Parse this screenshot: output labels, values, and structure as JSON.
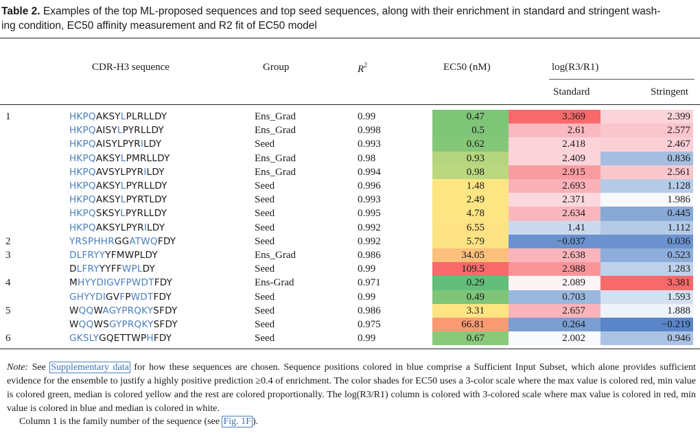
{
  "caption": {
    "label": "Table 2.",
    "text_line1": " Examples of the top ML-proposed sequences and top seed sequences, along with their enrichment in standard and stringent wash-",
    "text_line2": "ing condition, EC50 affinity measurement and R2 fit of EC50 model"
  },
  "headers": {
    "seq": "CDR-H3 sequence",
    "group": "Group",
    "r2_base": "R",
    "r2_sup": "2",
    "ec50": "EC50 (nM)",
    "log": "log(R3/R1)",
    "standard": "Standard",
    "stringent": "Stringent"
  },
  "colors": {
    "sis_blue": "#4a7fbf"
  },
  "rows": [
    {
      "family": "1",
      "seq": [
        [
          "HKPQ",
          "b"
        ],
        [
          "AKSY",
          "k"
        ],
        [
          "L",
          "b"
        ],
        [
          "PLRLLDY",
          "k"
        ]
      ],
      "group": "Ens_Grad",
      "r2": "0.99",
      "ec50": "0.47",
      "ec50_bg": "#7ec577",
      "std": "3.369",
      "std_bg": "#f8696b",
      "str": "2.399",
      "str_bg": "#fbd4da"
    },
    {
      "family": "",
      "seq": [
        [
          "HKPQ",
          "b"
        ],
        [
          "AISY",
          "k"
        ],
        [
          "L",
          "b"
        ],
        [
          "PYRLLDY",
          "k"
        ]
      ],
      "group": "Ens_Grad",
      "r2": "0.998",
      "ec50": "0.5",
      "ec50_bg": "#7ec577",
      "std": "2.61",
      "std_bg": "#fab8c0",
      "str": "2.577",
      "str_bg": "#fac5cc"
    },
    {
      "family": "",
      "seq": [
        [
          "HKPQ",
          "b"
        ],
        [
          "AISYLPYR",
          "k"
        ],
        [
          "I",
          "b"
        ],
        [
          "LDY",
          "k"
        ]
      ],
      "group": "Seed",
      "r2": "0.993",
      "ec50": "0.62",
      "ec50_bg": "#84c779",
      "std": "2.418",
      "std_bg": "#fbd3d9",
      "str": "2.467",
      "str_bg": "#fbcfd5"
    },
    {
      "family": "",
      "seq": [
        [
          "HKPQ",
          "b"
        ],
        [
          "AKSY",
          "k"
        ],
        [
          "L",
          "b"
        ],
        [
          "PMRLLDY",
          "k"
        ]
      ],
      "group": "Ens_Grad",
      "r2": "0.98",
      "ec50": "0.93",
      "ec50_bg": "#b5d67e",
      "std": "2.409",
      "std_bg": "#fbd4da",
      "str": "0.836",
      "str_bg": "#a3bee0"
    },
    {
      "family": "",
      "seq": [
        [
          "HKPQ",
          "b"
        ],
        [
          "AVSYLPYR",
          "k"
        ],
        [
          "I",
          "b"
        ],
        [
          "LDY",
          "k"
        ]
      ],
      "group": "Ens_Grad",
      "r2": "0.994",
      "ec50": "0.98",
      "ec50_bg": "#bcd87f",
      "std": "2.915",
      "std_bg": "#f99ca1",
      "str": "2.561",
      "str_bg": "#fac7cd"
    },
    {
      "family": "",
      "seq": [
        [
          "HKPQ",
          "b"
        ],
        [
          "AKSY",
          "k"
        ],
        [
          "L",
          "b"
        ],
        [
          "PYRLLDY",
          "k"
        ]
      ],
      "group": "Seed",
      "r2": "0.996",
      "ec50": "1.48",
      "ec50_bg": "#fee583",
      "std": "2.693",
      "std_bg": "#fab1b8",
      "str": "1.128",
      "str_bg": "#b6cbe8"
    },
    {
      "family": "",
      "seq": [
        [
          "HKPQ",
          "b"
        ],
        [
          "AKSY",
          "k"
        ],
        [
          "L",
          "b"
        ],
        [
          "PYRTLDY",
          "k"
        ]
      ],
      "group": "Seed",
      "r2": "0.993",
      "ec50": "2.49",
      "ec50_bg": "#fee583",
      "std": "2.371",
      "std_bg": "#fbd8de",
      "str": "1.986",
      "str_bg": "#f7f8fc"
    },
    {
      "family": "",
      "seq": [
        [
          "HKPQ",
          "b"
        ],
        [
          "SKSY",
          "k"
        ],
        [
          "L",
          "b"
        ],
        [
          "PYRLLDY",
          "k"
        ]
      ],
      "group": "Seed",
      "r2": "0.995",
      "ec50": "4.78",
      "ec50_bg": "#fee583",
      "std": "2.634",
      "std_bg": "#fab6bd",
      "str": "0.445",
      "str_bg": "#88a9d6"
    },
    {
      "family": "",
      "seq": [
        [
          "HKPQ",
          "b"
        ],
        [
          "AKSYLPYR",
          "k"
        ],
        [
          "I",
          "b"
        ],
        [
          "LDY",
          "k"
        ]
      ],
      "group": "Seed",
      "r2": "0.992",
      "ec50": "6.55",
      "ec50_bg": "#fee384",
      "std": "1.41",
      "std_bg": "#cad9ee",
      "str": "1.112",
      "str_bg": "#b5cae7"
    },
    {
      "family": "2",
      "seq": [
        [
          "YRSPHHR",
          "b"
        ],
        [
          "GG",
          "k"
        ],
        [
          "ATWQ",
          "b"
        ],
        [
          "FDY",
          "k"
        ]
      ],
      "group": "Seed",
      "r2": "0.992",
      "ec50": "5.79",
      "ec50_bg": "#fee384",
      "std": "−0.037",
      "std_bg": "#6b92cf",
      "str": "0.036",
      "str_bg": "#6c93cf"
    },
    {
      "family": "3",
      "seq": [
        [
          "DLFRYY",
          "b"
        ],
        [
          "YFMWPLDY",
          "k"
        ]
      ],
      "group": "Ens_Grad",
      "r2": "0.986",
      "ec50": "34.05",
      "ec50_bg": "#fdc07c",
      "std": "2.638",
      "std_bg": "#fab5bc",
      "str": "0.523",
      "str_bg": "#8daedb"
    },
    {
      "family": "",
      "seq": [
        [
          "D",
          "k"
        ],
        [
          "LFRY",
          "b"
        ],
        [
          "YYFF",
          "k"
        ],
        [
          "WPL",
          "b"
        ],
        [
          "DY",
          "k"
        ]
      ],
      "group": "Seed",
      "r2": "0.99",
      "ec50": "109.5",
      "ec50_bg": "#f8696b",
      "std": "2.988",
      "std_bg": "#f99499",
      "str": "1.283",
      "str_bg": "#bfd1ea"
    },
    {
      "family": "4",
      "seq": [
        [
          "M",
          "k"
        ],
        [
          "HYYDIGVFPWDT",
          "b"
        ],
        [
          "FDY",
          "k"
        ]
      ],
      "group": "Ens-Grad",
      "r2": "0.971",
      "ec50": "0.29",
      "ec50_bg": "#63be7b",
      "std": "2.089",
      "std_bg": "#fdf4f6",
      "str": "3.381",
      "str_bg": "#f8696b"
    },
    {
      "family": "",
      "seq": [
        [
          "GHYYDI",
          "b"
        ],
        [
          "GV",
          "k"
        ],
        [
          "F",
          "b"
        ],
        [
          "P",
          "k"
        ],
        [
          "WDT",
          "b"
        ],
        [
          "FDY",
          "k"
        ]
      ],
      "group": "Seed",
      "r2": "0.99",
      "ec50": "0.49",
      "ec50_bg": "#7ec577",
      "std": "0.703",
      "std_bg": "#9ab8de",
      "str": "1.593",
      "str_bg": "#d4e0f1"
    },
    {
      "family": "5",
      "seq": [
        [
          "W",
          "k"
        ],
        [
          "QQ",
          "b"
        ],
        [
          "W",
          "k"
        ],
        [
          "AGYPRQKY",
          "b"
        ],
        [
          "SFDY",
          "k"
        ]
      ],
      "group": "Seed",
      "r2": "0.986",
      "ec50": "3.31",
      "ec50_bg": "#fee583",
      "std": "2.657",
      "std_bg": "#fab4ba",
      "str": "1.888",
      "str_bg": "#eef2f9"
    },
    {
      "family": "",
      "seq": [
        [
          "W",
          "k"
        ],
        [
          "QQ",
          "b"
        ],
        [
          "WS",
          "k"
        ],
        [
          "GYPRQKY",
          "b"
        ],
        [
          "SFDY",
          "k"
        ]
      ],
      "group": "Seed",
      "r2": "0.975",
      "ec50": "66.81",
      "ec50_bg": "#fa9a74",
      "std": "0.264",
      "std_bg": "#7b9ed3",
      "str": "−0.219",
      "str_bg": "#5a85c8"
    },
    {
      "family": "6",
      "seq": [
        [
          "GKSLY",
          "b"
        ],
        [
          "GQETTWP",
          "k"
        ],
        [
          "H",
          "b"
        ],
        [
          "FDY",
          "k"
        ]
      ],
      "group": "Seed",
      "r2": "0.99",
      "ec50": "0.67",
      "ec50_bg": "#88c97a",
      "std": "2.002",
      "std_bg": "#f9fafd",
      "str": "0.946",
      "str_bg": "#abc3e3"
    }
  ],
  "note": {
    "label": "Note:",
    "pre": " See ",
    "link1": "Supplementary data",
    "body": " for how these sequences are chosen. Sequence positions colored in blue comprise a Sufficient Input Subset, which alone provides sufficient evidence for the ensemble to justify a highly positive prediction ≥0.4 of enrichment. The color shades for EC50 uses a 3-color scale where the max value is colored red, min value is colored green, median is colored yellow and the rest are colored proportionally. The log(R3/R1) column is colored with 3-colored scale where max value is colored in red, min value is colored in blue and median is colored in white.",
    "col1_pre": "Column 1 is the family number of the sequence (see ",
    "link2": "Fig. 1F",
    "col1_post": ")."
  }
}
